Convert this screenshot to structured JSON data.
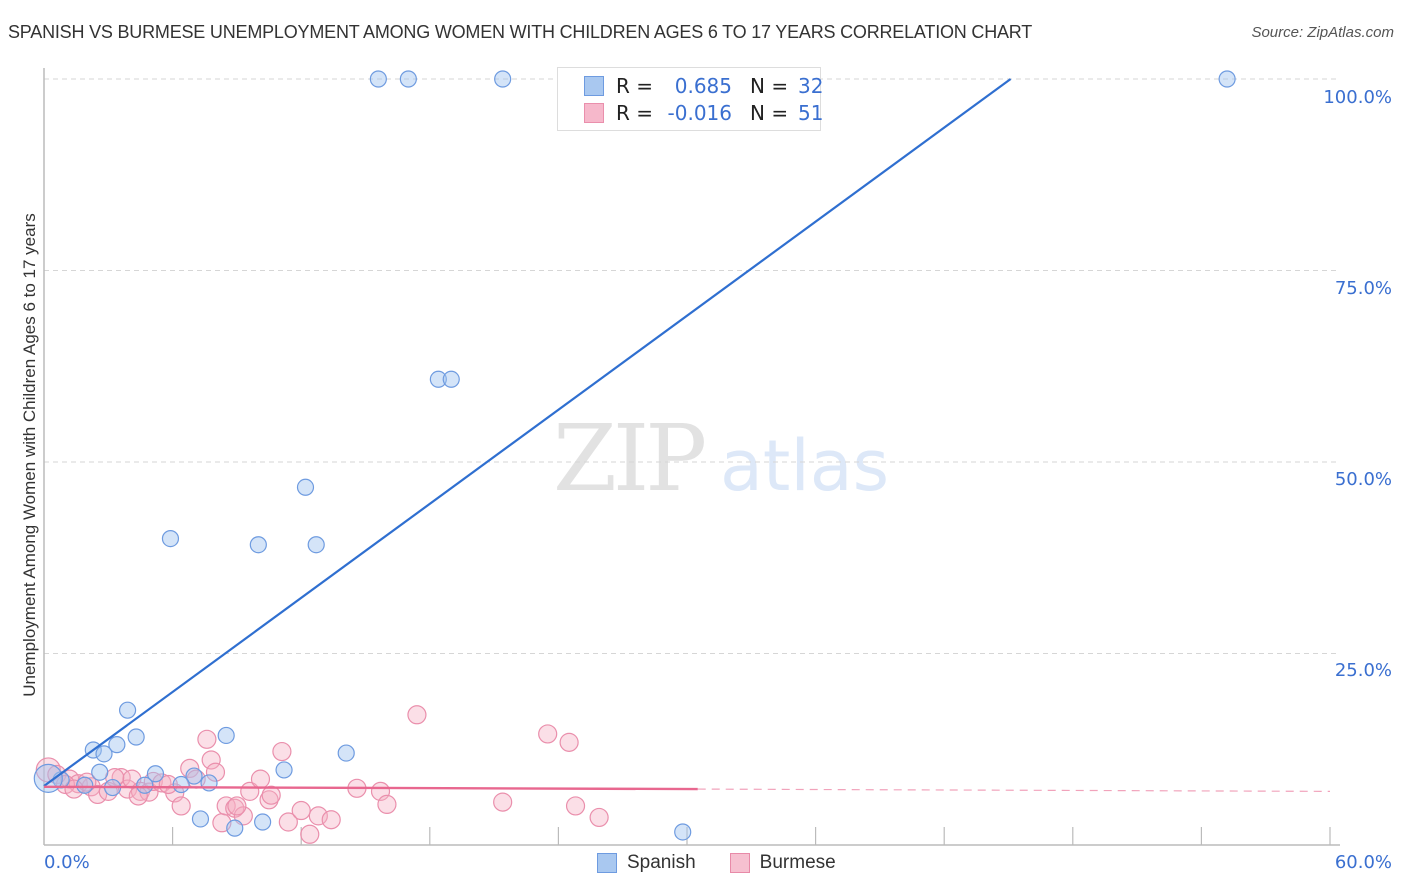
{
  "header": {
    "title": "SPANISH VS BURMESE UNEMPLOYMENT AMONG WOMEN WITH CHILDREN AGES 6 TO 17 YEARS CORRELATION CHART",
    "source": "Source: ZipAtlas.com"
  },
  "watermark": {
    "zip": "ZIP",
    "atlas": "atlas"
  },
  "legend_box": {
    "rows": [
      {
        "r_label": "R =",
        "r_value": "0.685",
        "n_label": "N =",
        "n_value": "32",
        "color": "#a9c8f0"
      },
      {
        "r_label": "R =",
        "r_value": "-0.016",
        "n_label": "N =",
        "n_value": "51",
        "color": "#f6b8cb"
      }
    ]
  },
  "axes": {
    "y_title": "Unemployment Among Women with Children Ages 6 to 17 years",
    "y_ticks": [
      "100.0%",
      "75.0%",
      "50.0%",
      "25.0%"
    ],
    "x_min_label": "0.0%",
    "x_max_label": "60.0%"
  },
  "bottom_legend": [
    {
      "label": "Spanish",
      "color": "#a9c8f0",
      "border": "#6e9be0"
    },
    {
      "label": "Burmese",
      "color": "#f6c0d0",
      "border": "#e88aa8"
    }
  ],
  "colors": {
    "spanish_fill": "rgba(160,196,240,0.45)",
    "spanish_stroke": "#6e9be0",
    "spanish_line": "#2f6fd0",
    "burmese_fill": "rgba(246,176,196,0.40)",
    "burmese_stroke": "#ea8fac",
    "burmese_line": "#e8678f",
    "grid": "#d6d6d6",
    "axis_label": "#3a6fd0"
  },
  "chart_data": {
    "type": "scatter",
    "title": "SPANISH VS BURMESE UNEMPLOYMENT AMONG WOMEN WITH CHILDREN AGES 6 TO 17 YEARS CORRELATION CHART",
    "xlabel": "",
    "ylabel": "Unemployment Among Women with Children Ages 6 to 17 years",
    "xlim": [
      0,
      60
    ],
    "ylim": [
      0,
      100
    ],
    "x_ticks": [
      "0.0%",
      "60.0%"
    ],
    "y_ticks": [
      "25.0%",
      "50.0%",
      "75.0%",
      "100.0%"
    ],
    "grid": "horizontal dashed",
    "legend_position": "bottom",
    "series": [
      {
        "name": "Spanish",
        "R": 0.685,
        "N": 32,
        "trend": {
          "x0": 0,
          "y0": 7.7,
          "x1": 45.1,
          "y1": 100
        },
        "points": [
          [
            15.6,
            100
          ],
          [
            17.0,
            100
          ],
          [
            21.4,
            100
          ],
          [
            55.2,
            100
          ],
          [
            18.4,
            60.8
          ],
          [
            19.0,
            60.8
          ],
          [
            12.2,
            46.7
          ],
          [
            5.9,
            40.0
          ],
          [
            10.0,
            39.2
          ],
          [
            12.7,
            39.2
          ],
          [
            3.9,
            17.6
          ],
          [
            2.3,
            12.4
          ],
          [
            2.8,
            11.9
          ],
          [
            3.4,
            13.1
          ],
          [
            4.3,
            14.1
          ],
          [
            8.5,
            14.3
          ],
          [
            14.1,
            12.0
          ],
          [
            11.2,
            9.8
          ],
          [
            2.6,
            9.5
          ],
          [
            5.2,
            9.3
          ],
          [
            7.0,
            9.0
          ],
          [
            4.7,
            7.8
          ],
          [
            6.4,
            7.9
          ],
          [
            7.7,
            8.1
          ],
          [
            0.8,
            8.5
          ],
          [
            1.9,
            7.8
          ],
          [
            7.3,
            3.4
          ],
          [
            8.9,
            2.2
          ],
          [
            10.2,
            3.0
          ],
          [
            29.8,
            1.7
          ],
          [
            0.2,
            8.7
          ],
          [
            3.2,
            7.5
          ]
        ]
      },
      {
        "name": "Burmese",
        "R": -0.016,
        "N": 51,
        "trend": {
          "x0": 0,
          "y0": 7.6,
          "x1": 30.5,
          "y1": 7.3,
          "dashed_to_x": 60,
          "dashed_y": 7.0
        },
        "points": [
          [
            0.2,
            9.8
          ],
          [
            0.6,
            9.2
          ],
          [
            1.2,
            8.6
          ],
          [
            1.6,
            8.0
          ],
          [
            2.2,
            7.6
          ],
          [
            2.5,
            6.6
          ],
          [
            3.0,
            7.0
          ],
          [
            3.6,
            8.8
          ],
          [
            3.9,
            7.3
          ],
          [
            4.1,
            8.6
          ],
          [
            4.5,
            7.0
          ],
          [
            4.9,
            6.9
          ],
          [
            5.1,
            8.3
          ],
          [
            5.5,
            8.1
          ],
          [
            6.1,
            6.8
          ],
          [
            6.4,
            5.1
          ],
          [
            6.8,
            10.0
          ],
          [
            7.1,
            8.6
          ],
          [
            7.6,
            13.8
          ],
          [
            7.8,
            11.1
          ],
          [
            8.0,
            9.5
          ],
          [
            8.3,
            2.9
          ],
          [
            8.5,
            5.1
          ],
          [
            8.9,
            4.8
          ],
          [
            9.3,
            3.8
          ],
          [
            9.6,
            7.0
          ],
          [
            10.1,
            8.6
          ],
          [
            10.5,
            5.9
          ],
          [
            11.1,
            12.2
          ],
          [
            11.4,
            3.0
          ],
          [
            12.0,
            4.5
          ],
          [
            12.4,
            1.4
          ],
          [
            12.8,
            3.8
          ],
          [
            13.4,
            3.3
          ],
          [
            14.6,
            7.4
          ],
          [
            15.7,
            7.0
          ],
          [
            16.0,
            5.3
          ],
          [
            17.4,
            17.0
          ],
          [
            21.4,
            5.6
          ],
          [
            23.5,
            14.5
          ],
          [
            24.5,
            13.4
          ],
          [
            24.8,
            5.1
          ],
          [
            25.9,
            3.6
          ],
          [
            1.0,
            7.9
          ],
          [
            2.0,
            8.2
          ],
          [
            4.4,
            6.4
          ],
          [
            5.8,
            7.9
          ],
          [
            9.0,
            5.1
          ],
          [
            10.6,
            6.5
          ],
          [
            1.4,
            7.3
          ],
          [
            3.3,
            8.8
          ]
        ]
      }
    ]
  }
}
